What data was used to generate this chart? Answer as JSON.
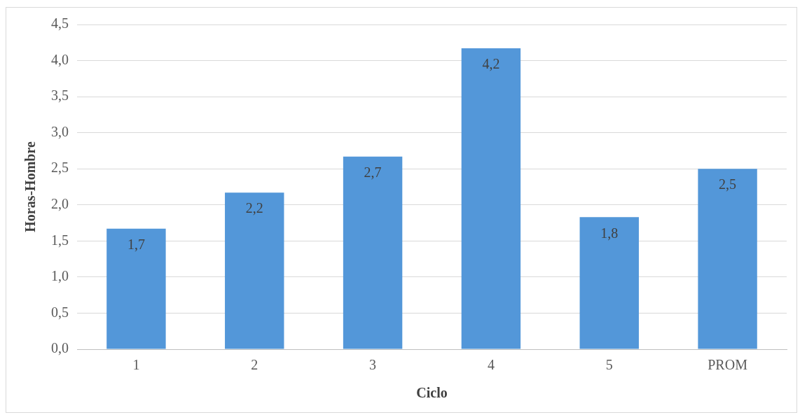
{
  "chart_data": {
    "type": "bar",
    "xlabel": "Ciclo",
    "ylabel": "Horas-Hombre",
    "categories": [
      "1",
      "2",
      "3",
      "4",
      "5",
      "PROM"
    ],
    "values": [
      1.67,
      2.17,
      2.67,
      4.17,
      1.83,
      2.5
    ],
    "value_labels": [
      "1,7",
      "2,2",
      "2,7",
      "4,2",
      "1,8",
      "2,5"
    ],
    "color": "#5397d9",
    "ylim": [
      0,
      4.5
    ],
    "yticks": [
      {
        "value": 0,
        "label": "0,0"
      },
      {
        "value": 0.5,
        "label": "0,5"
      },
      {
        "value": 1,
        "label": "1,0"
      },
      {
        "value": 1.5,
        "label": "1,5"
      },
      {
        "value": 2,
        "label": "2,0"
      },
      {
        "value": 2.5,
        "label": "2,5"
      },
      {
        "value": 3,
        "label": "3,0"
      },
      {
        "value": 3.5,
        "label": "3,5"
      },
      {
        "value": 4,
        "label": "4,0"
      },
      {
        "value": 4.5,
        "label": "4,5"
      }
    ],
    "grid": "y",
    "legend": false
  }
}
